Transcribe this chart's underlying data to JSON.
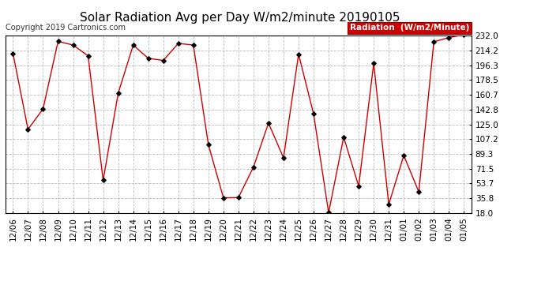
{
  "title": "Solar Radiation Avg per Day W/m2/minute 20190105",
  "copyright": "Copyright 2019 Cartronics.com",
  "legend_label": "Radiation  (W/m2/Minute)",
  "dates": [
    "12/06",
    "12/07",
    "12/08",
    "12/09",
    "12/10",
    "12/11",
    "12/12",
    "12/13",
    "12/14",
    "12/15",
    "12/16",
    "12/17",
    "12/18",
    "12/19",
    "12/20",
    "12/21",
    "12/22",
    "12/23",
    "12/24",
    "12/25",
    "12/26",
    "12/27",
    "12/28",
    "12/29",
    "12/30",
    "12/31",
    "01/01",
    "01/02",
    "01/03",
    "01/04",
    "01/05"
  ],
  "values": [
    210.5,
    119.0,
    143.5,
    225.0,
    220.5,
    207.5,
    57.5,
    162.5,
    220.5,
    204.5,
    202.0,
    222.5,
    220.5,
    100.5,
    36.5,
    36.8,
    73.5,
    126.5,
    84.5,
    209.5,
    137.5,
    18.5,
    109.5,
    50.5,
    198.5,
    28.5,
    87.5,
    43.5,
    224.5,
    229.5,
    233.0
  ],
  "yticks": [
    18.0,
    35.8,
    53.7,
    71.5,
    89.3,
    107.2,
    125.0,
    142.8,
    160.7,
    178.5,
    196.3,
    214.2,
    232.0
  ],
  "ymin": 18.0,
  "ymax": 232.0,
  "line_color": "#cc0000",
  "marker_color": "#000000",
  "bg_color": "#ffffff",
  "grid_color": "#bbbbbb",
  "legend_bg": "#cc0000",
  "legend_text_color": "#ffffff",
  "title_fontsize": 11,
  "tick_fontsize": 7.5,
  "copyright_fontsize": 7.0
}
